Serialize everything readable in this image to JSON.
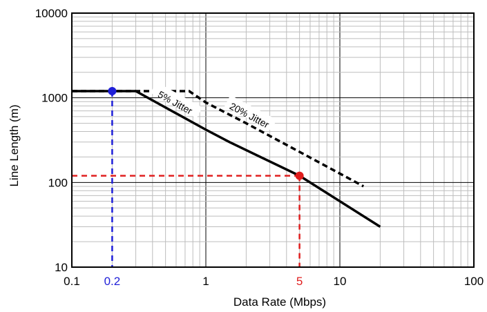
{
  "chart_data": {
    "type": "line",
    "x_scale": "log",
    "y_scale": "log",
    "xlim": [
      0.1,
      100
    ],
    "ylim": [
      10,
      10000
    ],
    "xlabel": "Data Rate (Mbps)",
    "ylabel": "Line Length (m)",
    "grid": true,
    "x_ticks": [
      {
        "value": 0.1,
        "label": "0.1",
        "color": "#000000"
      },
      {
        "value": 0.2,
        "label": "0.2",
        "color": "#1f1fd8"
      },
      {
        "value": 1,
        "label": "1",
        "color": "#000000"
      },
      {
        "value": 5,
        "label": "5",
        "color": "#e01e1e"
      },
      {
        "value": 10,
        "label": "10",
        "color": "#000000"
      },
      {
        "value": 100,
        "label": "100",
        "color": "#000000"
      }
    ],
    "y_ticks": [
      {
        "value": 10,
        "label": "10"
      },
      {
        "value": 100,
        "label": "100"
      },
      {
        "value": 1000,
        "label": "1000"
      },
      {
        "value": 10000,
        "label": "10000"
      }
    ],
    "series": [
      {
        "name": "5% Jitter",
        "style": "solid",
        "color": "#000000",
        "x": [
          0.1,
          0.3,
          1,
          1.5,
          5,
          20
        ],
        "y": [
          1200,
          1200,
          420,
          300,
          120,
          30
        ]
      },
      {
        "name": "20% Jitter",
        "style": "dashed",
        "color": "#000000",
        "x": [
          0.1,
          0.75,
          1,
          2,
          5,
          15
        ],
        "y": [
          1200,
          1200,
          880,
          500,
          230,
          90
        ]
      }
    ],
    "reference_lines": [
      {
        "x": 0.2,
        "y": 1200,
        "color": "#1f1fd8"
      },
      {
        "x": 5,
        "y": 120,
        "color": "#e01e1e"
      }
    ]
  }
}
